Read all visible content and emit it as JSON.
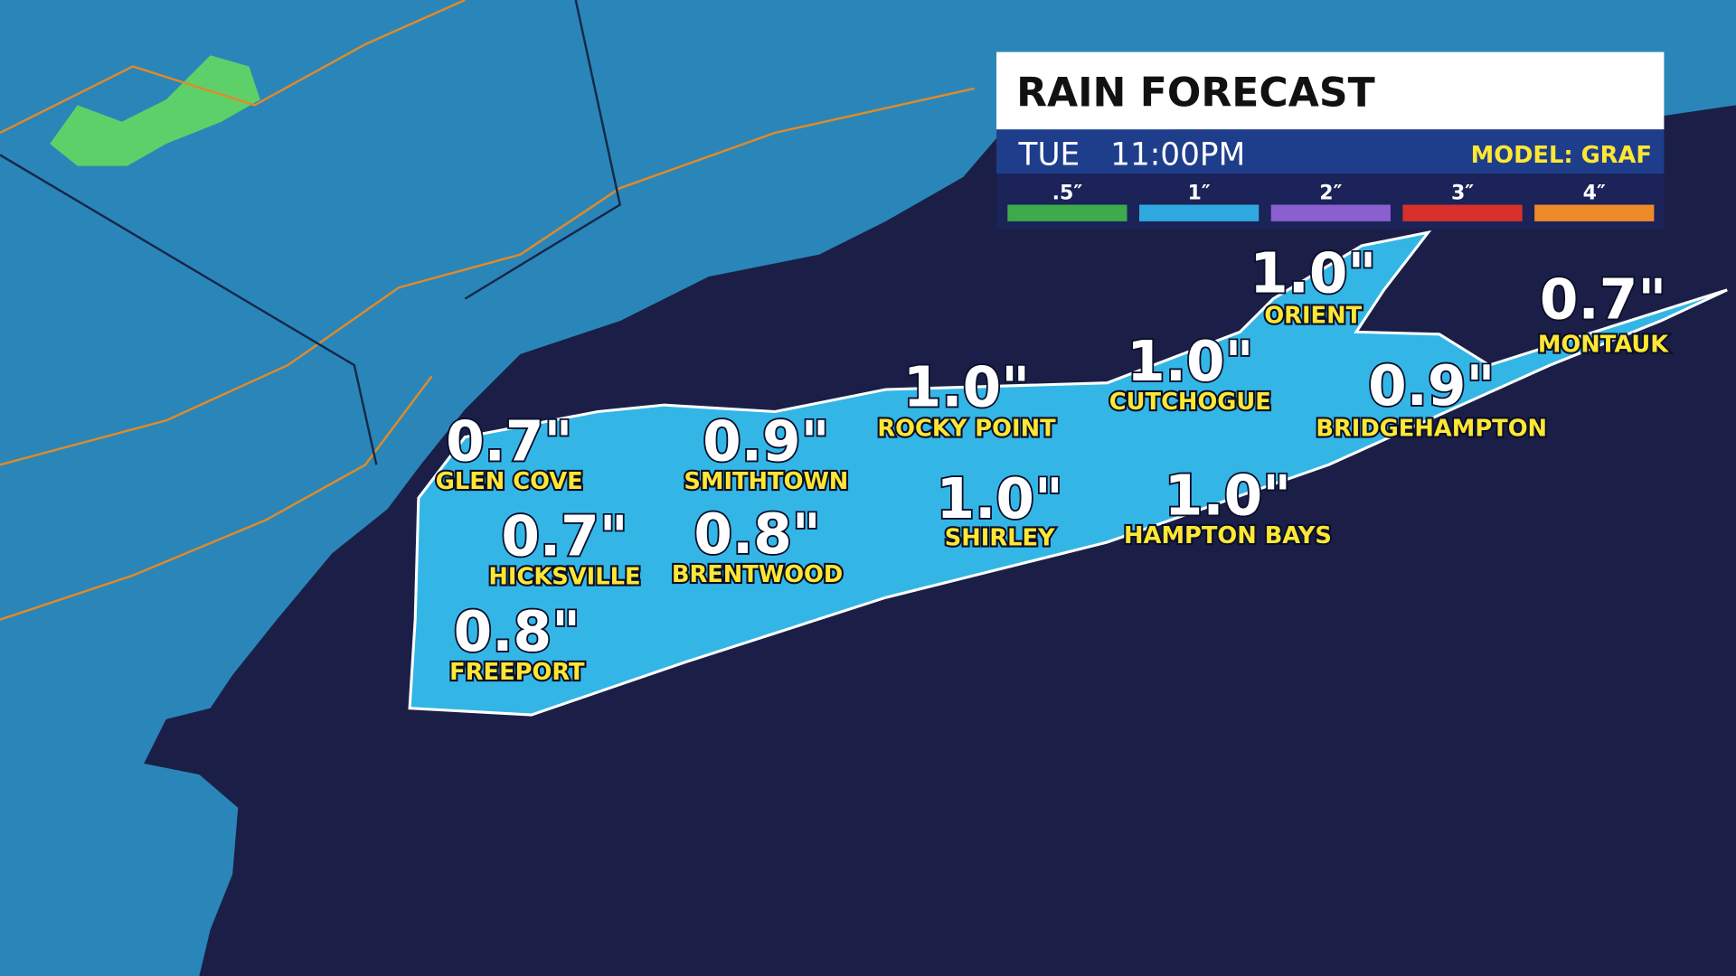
{
  "header": {
    "title": "RAIN FORECAST",
    "day": "TUE",
    "time": "11:00PM",
    "model": "MODEL: GRAF"
  },
  "legend": [
    {
      "label": ".5″",
      "color": "#3daa4c"
    },
    {
      "label": "1″",
      "color": "#2fa9e0"
    },
    {
      "label": "2″",
      "color": "#8a5fcf"
    },
    {
      "label": "3″",
      "color": "#d8302a"
    },
    {
      "label": "4″",
      "color": "#ee8a2a"
    }
  ],
  "locations": [
    {
      "name": "GLEN COVE",
      "value": "0.7\""
    },
    {
      "name": "SMITHTOWN",
      "value": "0.9\""
    },
    {
      "name": "HICKSVILLE",
      "value": "0.7\""
    },
    {
      "name": "BRENTWOOD",
      "value": "0.8\""
    },
    {
      "name": "FREEPORT",
      "value": "0.8\""
    },
    {
      "name": "ROCKY POINT",
      "value": "1.0\""
    },
    {
      "name": "SHIRLEY",
      "value": "1.0\""
    },
    {
      "name": "CUTCHOGUE",
      "value": "1.0\""
    },
    {
      "name": "ORIENT",
      "value": "1.0\""
    },
    {
      "name": "HAMPTON BAYS",
      "value": "1.0\""
    },
    {
      "name": "BRIDGEHAMPTON",
      "value": "0.9\""
    },
    {
      "name": "MONTAUK",
      "value": "0.7\""
    }
  ]
}
